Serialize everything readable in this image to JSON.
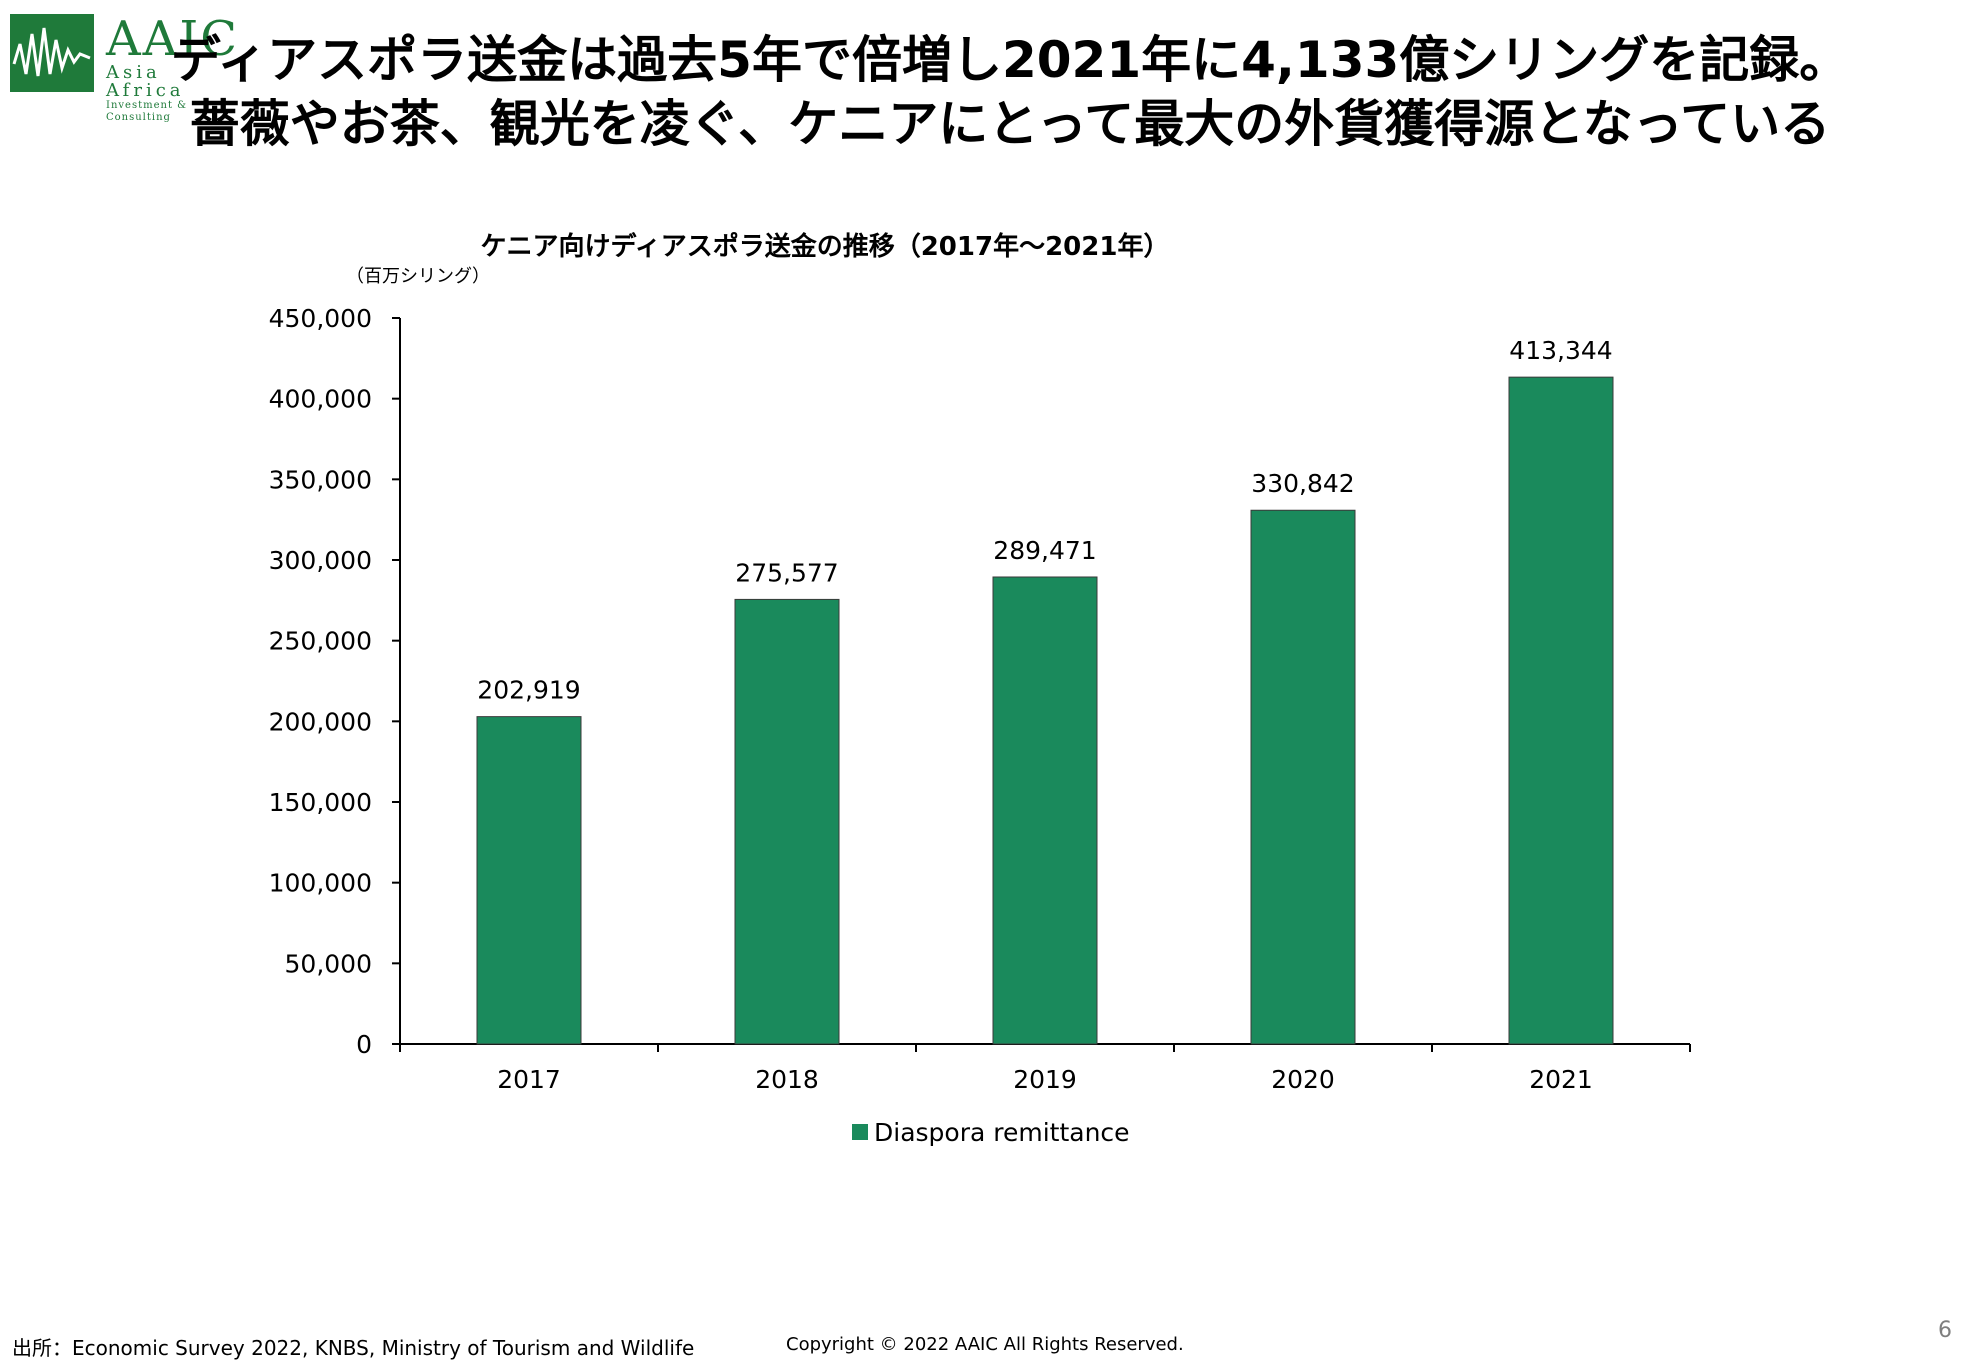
{
  "logo": {
    "main": "AAIC",
    "sub": "Asia Africa",
    "tagline": "Investment & Consulting"
  },
  "title": {
    "line1": "ディアスポラ送金は過去5年で倍増し2021年に4,133億シリングを記録。",
    "line2": "薔薇やお茶、観光を凌ぐ、ケニアにとって最大の外貨獲得源となっている"
  },
  "chart_data": {
    "type": "bar",
    "title": "ケニア向けディアスポラ送金の推移（2017年～2021年）",
    "unit_label": "（百万シリング）",
    "categories": [
      "2017",
      "2018",
      "2019",
      "2020",
      "2021"
    ],
    "series": [
      {
        "name": "Diaspora remittance",
        "values": [
          202919,
          275577,
          289471,
          330842,
          413344
        ]
      }
    ],
    "data_labels": [
      "202,919",
      "275,577",
      "289,471",
      "330,842",
      "413,344"
    ],
    "ylim": [
      0,
      450000
    ],
    "yticks": [
      0,
      50000,
      100000,
      150000,
      200000,
      250000,
      300000,
      350000,
      400000,
      450000
    ],
    "ytick_labels": [
      "0",
      "50,000",
      "100,000",
      "150,000",
      "200,000",
      "250,000",
      "300,000",
      "350,000",
      "400,000",
      "450,000"
    ],
    "legend_position": "bottom",
    "grid": false,
    "bar_color": "#1a8a5c"
  },
  "footer": {
    "source": "出所：Economic Survey 2022, KNBS, Ministry of Tourism and Wildlife",
    "copyright": "Copyright © 2022 AAIC All Rights Reserved.",
    "page_number": "6"
  }
}
